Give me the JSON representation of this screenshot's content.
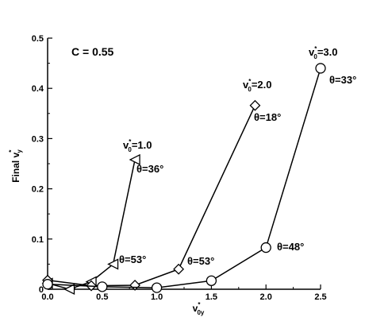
{
  "chart_data": {
    "type": "line",
    "xlabel": "v",
    "xlabel_sup": "*",
    "xlabel_sub": "0y",
    "ylabel": "Final v",
    "ylabel_sub": "y",
    "ylabel_sup": "*",
    "xlim": [
      0,
      2.5
    ],
    "ylim": [
      0,
      0.5
    ],
    "xticks": [
      "0.0",
      "0.5",
      "1.0",
      "1.5",
      "2.0",
      "2.5"
    ],
    "yticks": [
      "0",
      "0.1",
      "0.2",
      "0.3",
      "0.4",
      "0.5"
    ],
    "xtick_values": [
      0,
      0.5,
      1.0,
      1.5,
      2.0,
      2.5
    ],
    "ytick_values": [
      0,
      0.1,
      0.2,
      0.3,
      0.4,
      0.5
    ],
    "grid": false,
    "series": [
      {
        "marker": "triangle-left",
        "x": [
          0.0,
          0.2,
          0.4,
          0.6,
          0.8
        ],
        "y": [
          0.012,
          0.0,
          0.015,
          0.05,
          0.258
        ],
        "label_v": "v",
        "label_sub": "0",
        "label_sup": "*",
        "label_val": "=1.0",
        "angle_labels": [
          "θ=36°",
          "θ=53°"
        ]
      },
      {
        "marker": "diamond",
        "x": [
          0.0,
          0.4,
          0.8,
          1.2,
          1.9
        ],
        "y": [
          0.018,
          0.007,
          0.008,
          0.04,
          0.366
        ],
        "label_v": "v",
        "label_sub": "0",
        "label_sup": "*",
        "label_val": "=2.0",
        "angle_labels": [
          "θ=18°",
          "θ=53°"
        ]
      },
      {
        "marker": "circle",
        "x": [
          0.0,
          0.5,
          1.0,
          1.5,
          2.0,
          2.5
        ],
        "y": [
          0.01,
          0.005,
          0.003,
          0.017,
          0.083,
          0.44
        ],
        "label_v": "v",
        "label_sub": "0",
        "label_sup": "*",
        "label_val": "=3.0",
        "angle_labels": [
          "θ=33°",
          "θ=48°"
        ]
      }
    ],
    "annotations": {
      "c_label": "C = 0.55"
    }
  }
}
